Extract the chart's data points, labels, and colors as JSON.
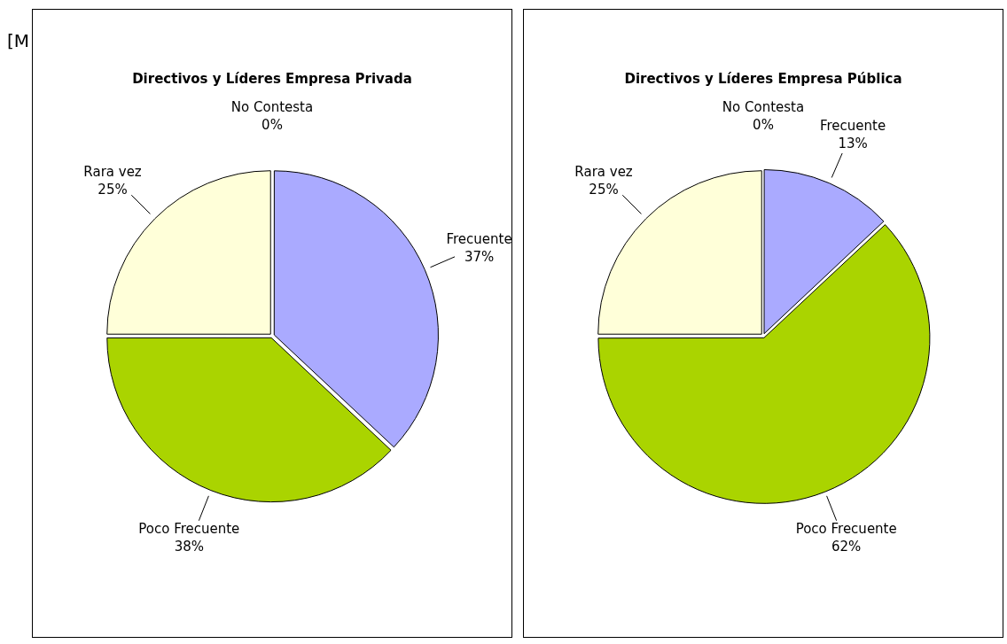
{
  "chart_data": [
    {
      "type": "pie",
      "title": "Directivos y Líderes Empresa Privada",
      "categories": [
        "No Contesta",
        "Frecuente",
        "Poco Frecuente",
        "Rara vez"
      ],
      "values": [
        0,
        37,
        38,
        25
      ],
      "value_labels": [
        "0%",
        "37%",
        "38%",
        "25%"
      ],
      "colors": [
        "#ffffff",
        "#aaaaff",
        "#aad400",
        "#ffffd9"
      ],
      "legend": false,
      "annotations": [
        "[M"
      ]
    },
    {
      "type": "pie",
      "title": "Directivos y Líderes Empresa Pública",
      "categories": [
        "No Contesta",
        "Frecuente",
        "Poco Frecuente",
        "Rara vez"
      ],
      "values": [
        0,
        13,
        62,
        25
      ],
      "value_labels": [
        "0%",
        "13%",
        "62%",
        "25%"
      ],
      "colors": [
        "#ffffff",
        "#aaaaff",
        "#aad400",
        "#ffffd9"
      ],
      "legend": false
    }
  ]
}
